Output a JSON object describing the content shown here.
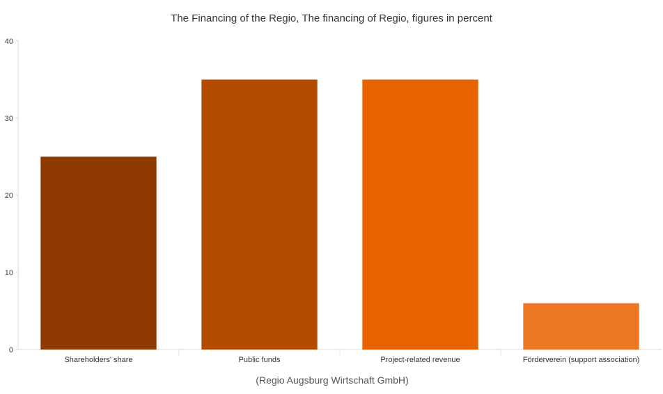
{
  "chart_data": {
    "type": "bar",
    "title": "The Financing of the Regio, The financing of Regio, figures in percent",
    "xlabel": "(Regio Augsburg Wirtschaft GmbH)",
    "ylabel": "",
    "categories": [
      "Shareholders' share",
      "Public funds",
      "Project-related revenue",
      "Förderverein (support association)"
    ],
    "values": [
      25,
      35,
      35,
      6
    ],
    "colors": [
      "#8f3a00",
      "#b44c00",
      "#e96200",
      "#ec7622"
    ],
    "ylim": [
      0,
      40
    ],
    "yticks": [
      0,
      10,
      20,
      30,
      40
    ],
    "grid": false,
    "legend": "none"
  }
}
